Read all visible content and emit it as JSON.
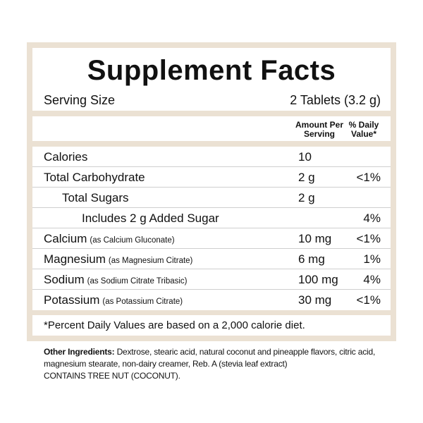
{
  "title": "Supplement Facts",
  "serving": {
    "label": "Serving Size",
    "value": "2 Tablets (3.2 g)"
  },
  "header": {
    "amount": "Amount Per Serving",
    "daily_value": "% Daily Value*"
  },
  "rows": [
    {
      "name": "Calories",
      "amount": "10"
    },
    {
      "name": "Total Carbohydrate",
      "amount": "2 g",
      "dv": "<1%"
    },
    {
      "name": "Total Sugars",
      "amount": "2 g"
    },
    {
      "name": "Includes 2 g Added Sugar",
      "dv": "4%"
    },
    {
      "name": "Calcium",
      "note": "(as Calcium Gluconate)",
      "amount": "10 mg",
      "dv": "<1%"
    },
    {
      "name": "Magnesium",
      "note": "(as Magnesium Citrate)",
      "amount": "6 mg",
      "dv": "1%"
    },
    {
      "name": "Sodium",
      "note": "(as Sodium Citrate Tribasic)",
      "amount": "100 mg",
      "dv": "4%"
    },
    {
      "name": "Potassium",
      "note": "(as Potassium Citrate)",
      "amount": "30 mg",
      "dv": "<1%"
    }
  ],
  "footnote": "*Percent Daily Values are based on a 2,000 calorie diet.",
  "other_ingredients": {
    "label": "Other Ingredients:",
    "text": "Dextrose, stearic acid, natural coconut and pineapple flavors, citric acid, magnesium stearate, non-dairy creamer, Reb. A (stevia leaf extract)"
  },
  "allergen": "CONTAINS TREE NUT (COCONUT)."
}
